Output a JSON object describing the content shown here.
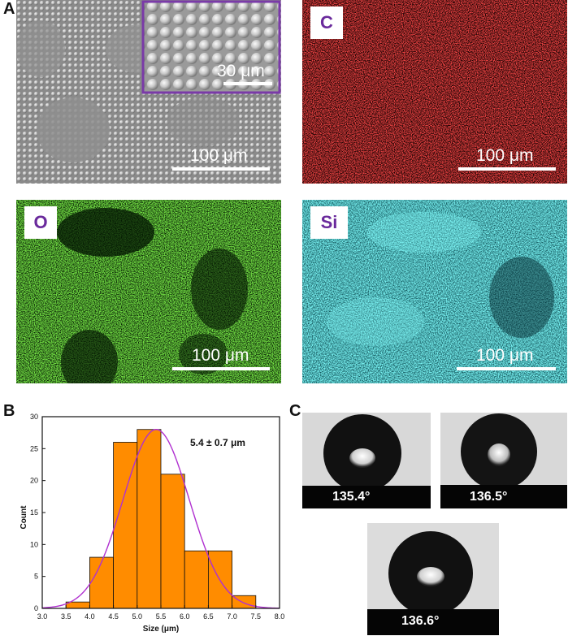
{
  "figure": {
    "panel_labels": {
      "a": "A",
      "b": "B",
      "c": "C"
    }
  },
  "panel_a": {
    "sem": {
      "scale": "100 μm",
      "inset_scale": "30 μm"
    },
    "maps": [
      {
        "element": "C",
        "scale": "100 μm",
        "color": "#e01010"
      },
      {
        "element": "O",
        "scale": "100 μm",
        "color": "#2ec40f"
      },
      {
        "element": "Si",
        "scale": "100 μm",
        "color": "#2fe6e6"
      }
    ]
  },
  "panel_c": {
    "angles": [
      "135.4°",
      "136.5°",
      "136.6°"
    ]
  },
  "chart_data": {
    "type": "bar",
    "annotation": "5.4 ± 0.7 μm",
    "xlabel": "Size (μm)",
    "ylabel": "Count",
    "xlim": [
      3.0,
      8.0
    ],
    "ylim": [
      0,
      30
    ],
    "x_ticks": [
      "3.0",
      "3.5",
      "4.0",
      "4.5",
      "5.0",
      "5.5",
      "6.0",
      "6.5",
      "7.0",
      "7.5",
      "8.0"
    ],
    "y_ticks": [
      "0",
      "5",
      "10",
      "15",
      "20",
      "25",
      "30"
    ],
    "bins": [
      {
        "start": 3.5,
        "end": 4.0,
        "value": 1
      },
      {
        "start": 4.0,
        "end": 4.5,
        "value": 8
      },
      {
        "start": 4.5,
        "end": 5.0,
        "value": 26
      },
      {
        "start": 5.0,
        "end": 5.5,
        "value": 28
      },
      {
        "start": 5.5,
        "end": 6.0,
        "value": 21
      },
      {
        "start": 6.0,
        "end": 6.5,
        "value": 9
      },
      {
        "start": 6.5,
        "end": 7.0,
        "value": 9
      },
      {
        "start": 7.0,
        "end": 7.5,
        "value": 2
      }
    ],
    "fit": {
      "type": "gaussian",
      "mean": 5.4,
      "sd": 0.7,
      "peak": 28
    },
    "bar_color": "#ff8c00",
    "fit_color": "#b030d0"
  }
}
